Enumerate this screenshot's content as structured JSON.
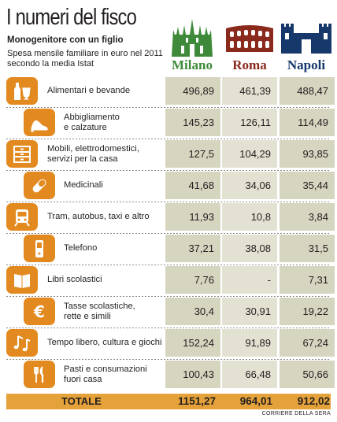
{
  "title": "I numeri del fisco",
  "subtitle": "Monogenitore con un figlio",
  "description": "Spesa mensile familiare in euro nel 2011 secondo la media Istat",
  "cities": [
    {
      "name": "Milano",
      "color": "#3f8a3a",
      "icon": "milan-cathedral-icon"
    },
    {
      "name": "Roma",
      "color": "#8a2a1c",
      "icon": "colosseum-icon"
    },
    {
      "name": "Napoli",
      "color": "#16386b",
      "icon": "castel-nuovo-icon"
    }
  ],
  "rows": [
    {
      "label": "Alimentari e bevande",
      "icon": "bottle-glass-icon",
      "milano": "496,89",
      "roma": "461,39",
      "napoli": "488,47"
    },
    {
      "label": "Abbigliamento\ne calzature",
      "icon": "shoe-icon",
      "milano": "145,23",
      "roma": "126,11",
      "napoli": "114,49"
    },
    {
      "label": "Mobili, elettrodomestici,\nservizi per la casa",
      "icon": "furniture-icon",
      "milano": "127,5",
      "roma": "104,29",
      "napoli": "93,85"
    },
    {
      "label": "Medicinali",
      "icon": "pill-icon",
      "milano": "41,68",
      "roma": "34,06",
      "napoli": "35,44"
    },
    {
      "label": "Tram, autobus, taxi e altro",
      "icon": "tram-icon",
      "milano": "11,93",
      "roma": "10,8",
      "napoli": "3,84"
    },
    {
      "label": "Telefono",
      "icon": "phone-icon",
      "milano": "37,21",
      "roma": "38,08",
      "napoli": "31,5"
    },
    {
      "label": "Libri scolastici",
      "icon": "book-icon",
      "milano": "7,76",
      "roma": "-",
      "napoli": "7,31"
    },
    {
      "label": "Tasse scolastiche,\nrette e simili",
      "icon": "euro-icon",
      "milano": "30,4",
      "roma": "30,91",
      "napoli": "19,22"
    },
    {
      "label": "Tempo libero, cultura e giochi",
      "icon": "music-notes-icon",
      "milano": "152,24",
      "roma": "91,89",
      "napoli": "67,24"
    },
    {
      "label": "Pasti e consumazioni\nfuori casa",
      "icon": "cutlery-icon",
      "milano": "100,43",
      "roma": "66,48",
      "napoli": "50,66"
    }
  ],
  "total": {
    "label": "TOTALE",
    "milano": "1151,27",
    "roma": "964,01",
    "napoli": "912,02"
  },
  "source": "CORRIERE DELLA SERA",
  "colors": {
    "icon_bg": "#e28a1f",
    "cell_dark": "#d6d5bf",
    "cell_light": "#e3e2d2",
    "total_bg": "#e6a23a"
  }
}
